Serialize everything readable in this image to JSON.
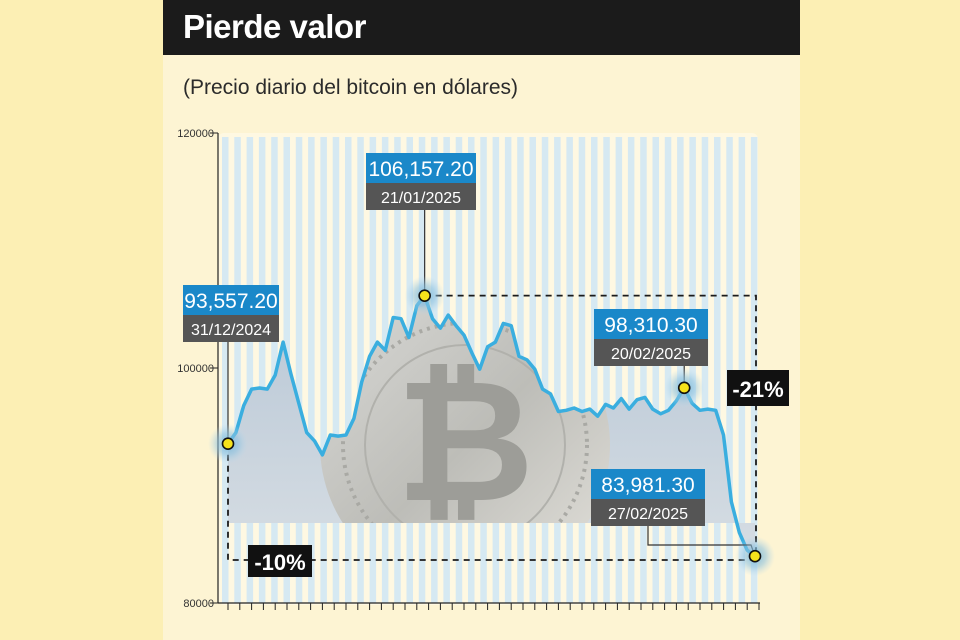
{
  "header": {
    "title": "Pierde valor",
    "subtitle": "(Precio diario del bitcoin en dólares)"
  },
  "colors": {
    "line": "#3aaedf",
    "label_value_bg": "#1a88c9",
    "label_date_bg": "#555555",
    "pct_bg": "#111111"
  },
  "chart_data": {
    "type": "area",
    "title": "Pierde valor",
    "subtitle": "(Precio diario del bitcoin en dólares)",
    "xlabel": "",
    "ylabel": "",
    "ylim": [
      80000,
      120000
    ],
    "y_ticks": [
      {
        "value": 120000,
        "label": "120000"
      },
      {
        "value": 100000,
        "label": "100000"
      },
      {
        "value": 80000,
        "label": "80000"
      }
    ],
    "grid": true,
    "legend": "none",
    "start_date": "31/12/2024",
    "end_date": "27/02/2025",
    "values": [
      93557.2,
      94500,
      96800,
      98200,
      98300,
      98200,
      99400,
      102200,
      99500,
      97000,
      94500,
      93800,
      92600,
      94300,
      94200,
      94300,
      95700,
      98800,
      101000,
      102200,
      101500,
      104300,
      104200,
      102600,
      105300,
      106157.2,
      104200,
      103400,
      104500,
      103600,
      102800,
      101300,
      99900,
      101800,
      102200,
      103800,
      103600,
      101000,
      100700,
      99900,
      98200,
      97800,
      96300,
      96400,
      96600,
      96300,
      96500,
      95900,
      96900,
      96600,
      97400,
      96500,
      97300,
      97500,
      96500,
      96100,
      96400,
      97200,
      98310.3,
      97000,
      96400,
      96500,
      96400,
      94300,
      88600,
      86000,
      84500,
      83981.3
    ],
    "annotations": [
      {
        "value": "93,557.20",
        "date": "31/12/2024"
      },
      {
        "value": "106,157.20",
        "date": "21/01/2025"
      },
      {
        "value": "98,310.30",
        "date": "20/02/2025"
      },
      {
        "value": "83,981.30",
        "date": "27/02/2025"
      }
    ],
    "change_labels": [
      "-10%",
      "-21%"
    ]
  }
}
